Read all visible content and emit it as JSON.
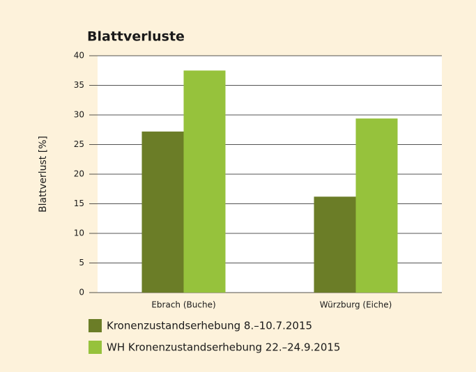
{
  "chart_data": {
    "type": "bar",
    "title": "Blattverluste",
    "y_label": "Blattverlust [%]",
    "categories": [
      "Ebrach (Buche)",
      "Würzburg (Eiche)"
    ],
    "series": [
      {
        "name": "Kronenzustandserhebung 8.–10.7.2015",
        "color": "#6b7d27",
        "values": [
          27.2,
          16.2
        ]
      },
      {
        "name": "WH Kronenzustandserhebung 22.–24.9.2015",
        "color": "#96c23c",
        "values": [
          37.5,
          29.4
        ]
      }
    ],
    "ylim": [
      0,
      40
    ],
    "yticks": [
      0,
      5,
      10,
      15,
      20,
      25,
      30,
      35,
      40
    ],
    "grid": true,
    "legend": "bottom"
  }
}
